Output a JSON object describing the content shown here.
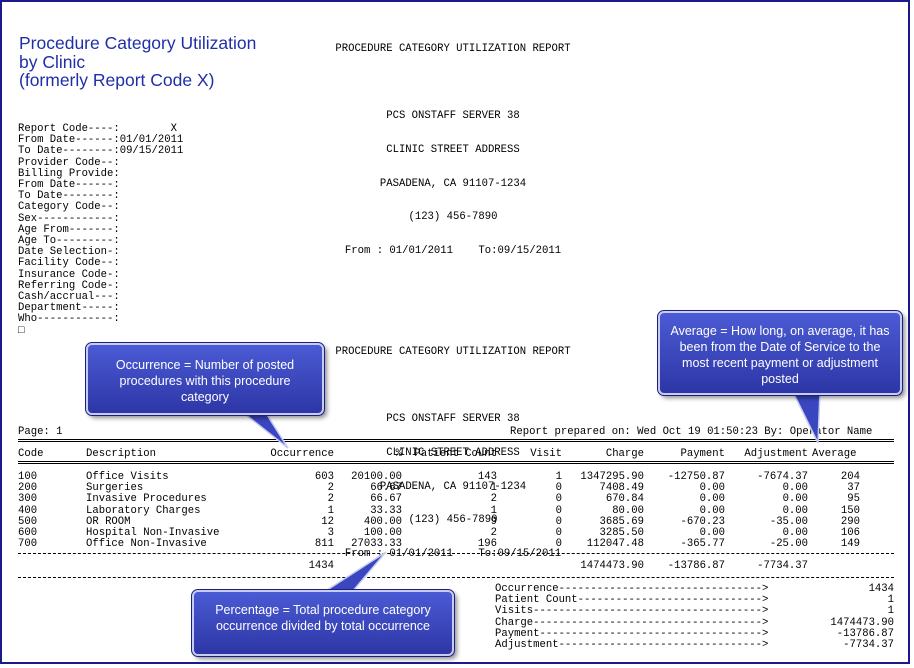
{
  "heading": {
    "line1": "Procedure Category Utilization",
    "line2": "by Clinic",
    "line3": "(formerly Report Code X)"
  },
  "report_header_1": {
    "title": "PROCEDURE CATEGORY UTILIZATION REPORT",
    "server": "PCS ONSTAFF SERVER 38",
    "address": "CLINIC STREET ADDRESS",
    "city": "PASADENA, CA 91107-1234",
    "phone": "(123) 456-7890",
    "range": "From : 01/01/2011    To:09/15/2011"
  },
  "params": [
    "Report Code----:        X",
    "From Date------:01/01/2011",
    "To Date--------:09/15/2011",
    "Provider Code--:",
    "Billing Provide:",
    "From Date------:",
    "To Date--------:",
    "Category Code--:",
    "Sex------------:",
    "Age From-------:",
    "Age To---------:",
    "Date Selection-:",
    "Facility Code--:",
    "Insurance Code-:",
    "Referring Code-:",
    "Cash/accrual---:",
    "Department-----:",
    "Who------------:"
  ],
  "box_glyph": "□",
  "report_header_2": {
    "title": "PROCEDURE CATEGORY UTILIZATION REPORT",
    "server": "PCS ONSTAFF SERVER 38",
    "address": "CLINIC STREET ADDRESS",
    "city": "PASADENA, CA 91107-1234",
    "phone": "(123) 456-7890",
    "range": "From : 01/01/2011    To:09/15/2011"
  },
  "page_label": "Page: 1",
  "prepared": "Report prepared on: Wed Oct 19 01:50:23 By: Operator Name",
  "columns": {
    "code": "Code",
    "description": "Description",
    "occurrence": "Occurrence",
    "percent": "%",
    "patient_count": "Patient Count",
    "visit": "Visit",
    "charge": "Charge",
    "payment": "Payment",
    "adjustment": "Adjustment",
    "average": "Average"
  },
  "rows": [
    {
      "code": "100",
      "description": "Office Visits",
      "occurrence": "603",
      "percent": "20100.00",
      "patient_count": "143",
      "visit": "1",
      "charge": "1347295.90",
      "payment": "-12750.87",
      "adjustment": "-7674.37",
      "average": "204"
    },
    {
      "code": "200",
      "description": "Surgeries",
      "occurrence": "2",
      "percent": "66.67",
      "patient_count": "1",
      "visit": "0",
      "charge": "7408.49",
      "payment": "0.00",
      "adjustment": "0.00",
      "average": "37"
    },
    {
      "code": "300",
      "description": "Invasive Procedures",
      "occurrence": "2",
      "percent": "66.67",
      "patient_count": "2",
      "visit": "0",
      "charge": "670.84",
      "payment": "0.00",
      "adjustment": "0.00",
      "average": "95"
    },
    {
      "code": "400",
      "description": "Laboratory Charges",
      "occurrence": "1",
      "percent": "33.33",
      "patient_count": "1",
      "visit": "0",
      "charge": "80.00",
      "payment": "0.00",
      "adjustment": "0.00",
      "average": "150"
    },
    {
      "code": "500",
      "description": "OR ROOM",
      "occurrence": "12",
      "percent": "400.00",
      "patient_count": "9",
      "visit": "0",
      "charge": "3685.69",
      "payment": "-670.23",
      "adjustment": "-35.00",
      "average": "290"
    },
    {
      "code": "600",
      "description": "Hospital Non-Invasive",
      "occurrence": "3",
      "percent": "100.00",
      "patient_count": "2",
      "visit": "0",
      "charge": "3285.50",
      "payment": "0.00",
      "adjustment": "0.00",
      "average": "106"
    },
    {
      "code": "700",
      "description": "Office Non-Invasive",
      "occurrence": "811",
      "percent": "27033.33",
      "patient_count": "196",
      "visit": "0",
      "charge": "112047.48",
      "payment": "-365.77",
      "adjustment": "-25.00",
      "average": "149"
    }
  ],
  "totals": {
    "occurrence": "1434",
    "charge": "1474473.90",
    "payment": "-13786.87",
    "adjustment": "-7734.37"
  },
  "summary": [
    {
      "label": "Occurrence-------------------------------->",
      "value": "1434"
    },
    {
      "label": "Patient Count----------------------------->",
      "value": "1"
    },
    {
      "label": "Visits------------------------------------>",
      "value": "1"
    },
    {
      "label": "Charge------------------------------------>",
      "value": "1474473.90"
    },
    {
      "label": "Payment----------------------------------->",
      "value": "-13786.87"
    },
    {
      "label": "Adjustment-------------------------------->",
      "value": "-7734.37"
    }
  ],
  "callouts": {
    "occurrence": "Occurrence = Number of posted procedures with this procedure category",
    "average": "Average = How long, on average, it has been from the Date of Service to the most recent payment or adjustment posted",
    "percentage": "Percentage = Total procedure category occurrence divided by total occurrence"
  },
  "colors": {
    "heading_blue": "#1f2fa8",
    "callout_fill": "#3a46c0",
    "frame": "#1a1a8c"
  }
}
